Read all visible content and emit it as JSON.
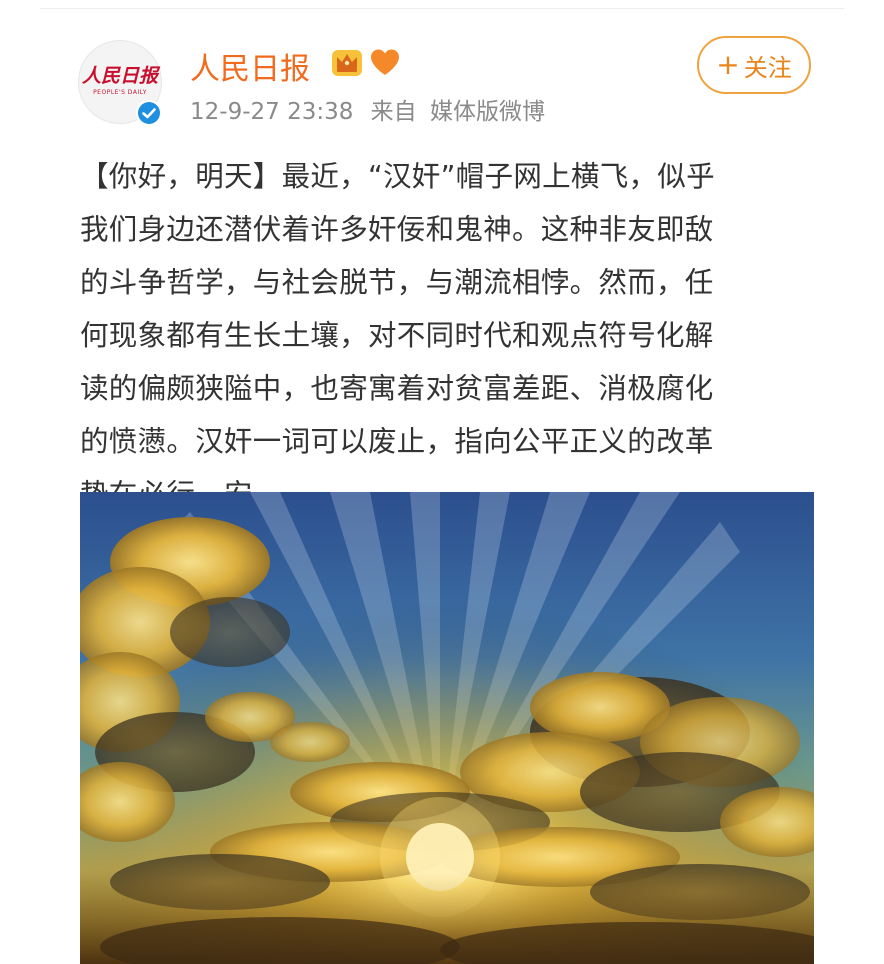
{
  "post": {
    "author": {
      "name": "人民日报",
      "avatar_logo_text": "人民日报",
      "avatar_sub_text": "PEOPLE'S DAILY",
      "verified": true
    },
    "timestamp": "12-9-27 23:38",
    "source_label": "来自",
    "source_name": "媒体版微博",
    "follow_button": {
      "label": "关注",
      "plus": "+"
    },
    "text_lines": [
      "【你好，明天】最近，“汉奸”帽子网上横飞，似乎",
      "我们身边还潜伏着许多奸佞和鬼神。这种非友即敌",
      "的斗争哲学，与社会脱节，与潮流相悖。然而，任",
      "何现象都有生长土壤，对不同时代和观点符号化解",
      "读的偏颇狭隘中，也寄寓着对贫富差距、消极腐化",
      "的愤懑。汉奸一词可以废止，指向公平正义的改革",
      "势在必行。安。"
    ],
    "image": {
      "subject": "sunset-clouds"
    }
  },
  "colors": {
    "username": "#f26a1b",
    "follow_border": "#f0a23e",
    "follow_text": "#e8841a",
    "meta_text": "#8a8a8a",
    "body_text": "#333333",
    "verified_blue": "#1f8fe0",
    "crown_gold": "#f2a11f",
    "heart_orange": "#f5892a"
  }
}
